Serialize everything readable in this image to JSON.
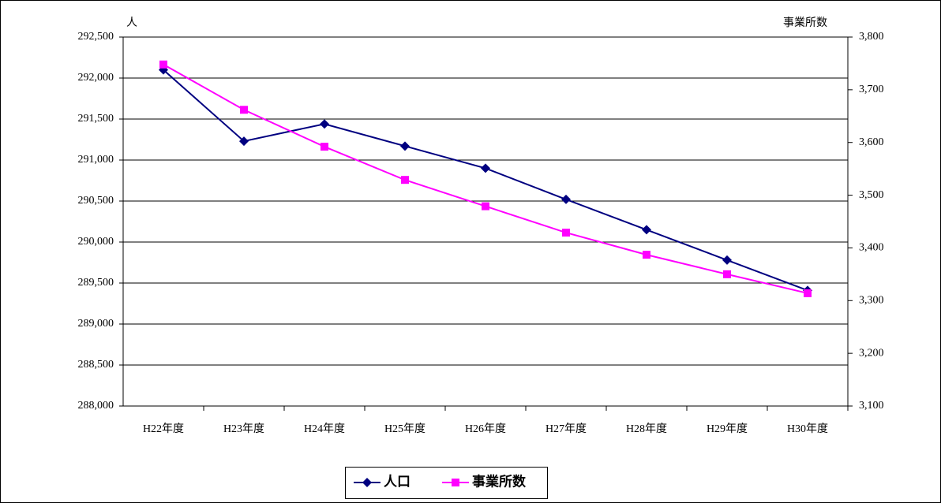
{
  "chart_data": {
    "type": "line",
    "y_label": "人",
    "y2_label": "事業所数",
    "categories": [
      "H22年度",
      "H23年度",
      "H24年度",
      "H25年度",
      "H26年度",
      "H27年度",
      "H28年度",
      "H29年度",
      "H30年度"
    ],
    "series": [
      {
        "name": "人口",
        "color": "#000080",
        "marker": "diamond",
        "axis": "y",
        "values": [
          292100,
          291230,
          291440,
          291170,
          290900,
          290520,
          290150,
          289780,
          289410
        ]
      },
      {
        "name": "事業所数",
        "color": "#ff00ff",
        "marker": "square",
        "axis": "y2",
        "values": [
          3748,
          3662,
          3592,
          3529,
          3479,
          3429,
          3387,
          3350,
          3314
        ]
      }
    ],
    "ylim": [
      288000,
      292500
    ],
    "yticks": [
      {
        "value": 288000,
        "label": "288,000"
      },
      {
        "value": 288500,
        "label": "288,500"
      },
      {
        "value": 289000,
        "label": "289,000"
      },
      {
        "value": 289500,
        "label": "289,500"
      },
      {
        "value": 290000,
        "label": "290,000"
      },
      {
        "value": 290500,
        "label": "290,500"
      },
      {
        "value": 291000,
        "label": "291,000"
      },
      {
        "value": 291500,
        "label": "291,500"
      },
      {
        "value": 292000,
        "label": "292,000"
      },
      {
        "value": 292500,
        "label": "292,500"
      }
    ],
    "y2lim": [
      3100,
      3800
    ],
    "y2ticks": [
      {
        "value": 3100,
        "label": "3,100"
      },
      {
        "value": 3200,
        "label": "3,200"
      },
      {
        "value": 3300,
        "label": "3,300"
      },
      {
        "value": 3400,
        "label": "3,400"
      },
      {
        "value": 3500,
        "label": "3,500"
      },
      {
        "value": 3600,
        "label": "3,600"
      },
      {
        "value": 3700,
        "label": "3,700"
      },
      {
        "value": 3800,
        "label": "3,800"
      }
    ],
    "grid": true,
    "legend": "bottom"
  }
}
